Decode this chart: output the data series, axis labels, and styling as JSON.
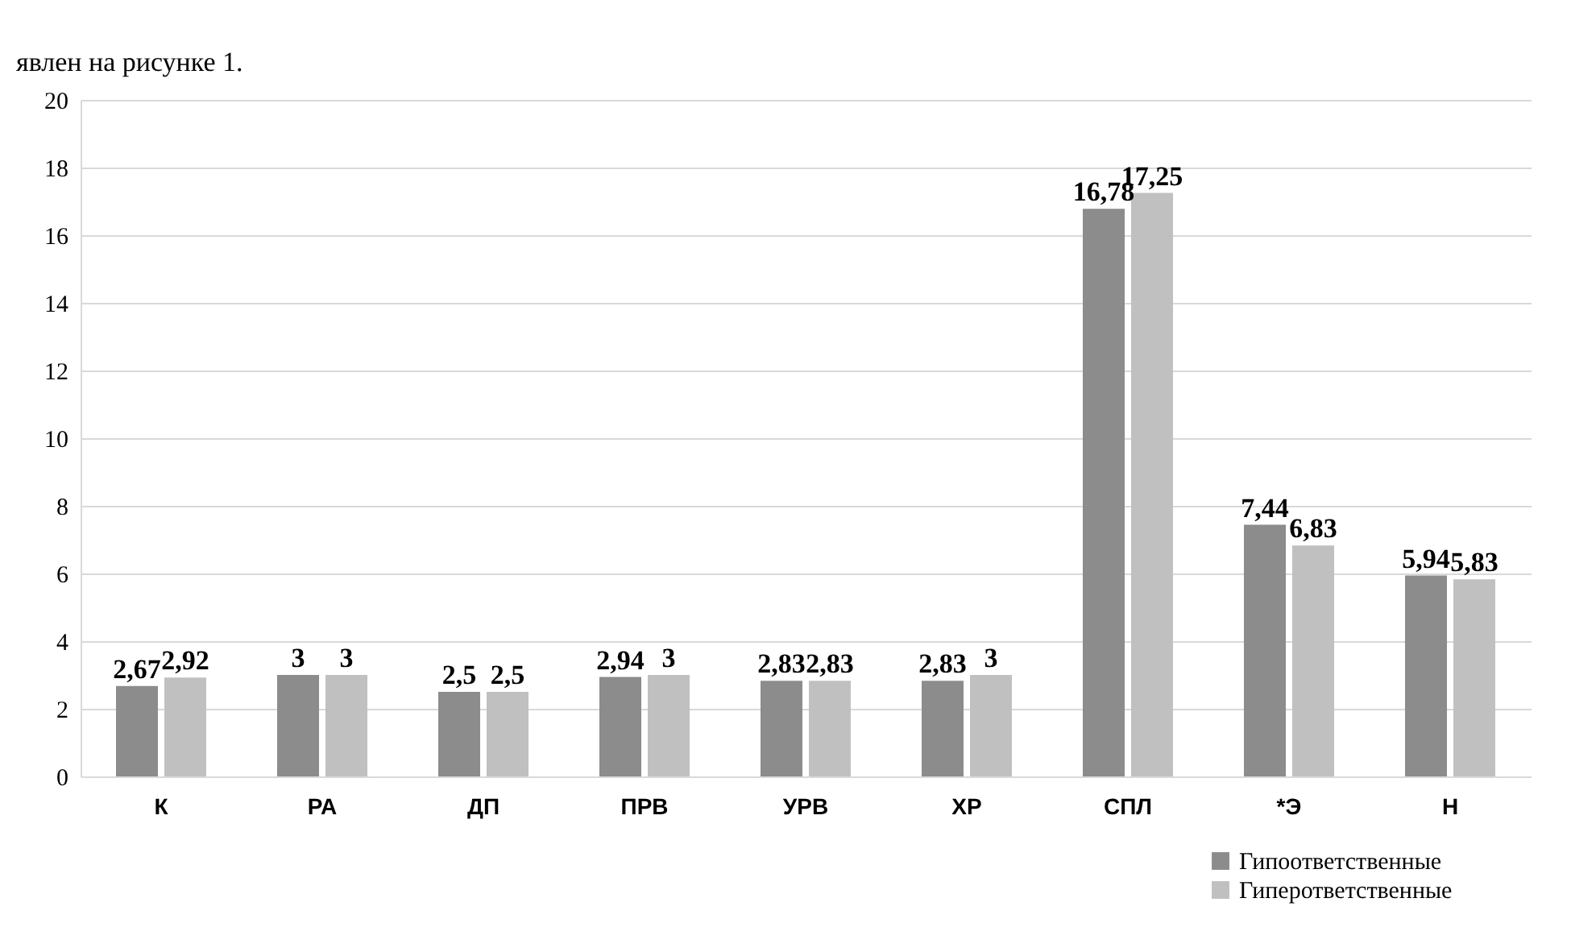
{
  "chart_data": {
    "type": "bar",
    "annotations": [
      "явлен на рисунке 1."
    ],
    "categories": [
      "К",
      "РА",
      "ДП",
      "ПРВ",
      "УРВ",
      "ХР",
      "СПЛ",
      "*Э",
      "Н"
    ],
    "series": [
      {
        "name": "Гипоответственные",
        "color": "#8c8c8c",
        "values": [
          2.67,
          3,
          2.5,
          2.94,
          2.83,
          2.83,
          16.78,
          7.44,
          5.94
        ],
        "value_labels": [
          "2,67",
          "3",
          "2,5",
          "2,94",
          "2,83",
          "2,83",
          "16,78",
          "7,44",
          "5,94"
        ]
      },
      {
        "name": "Гиперответственные",
        "color": "#c0c0c0",
        "values": [
          2.92,
          3,
          2.5,
          3,
          2.83,
          3,
          17.25,
          6.83,
          5.83
        ],
        "value_labels": [
          "2,92",
          "3",
          "2,5",
          "3",
          "2,83",
          "3",
          "17,25",
          "6,83",
          "5,83"
        ]
      }
    ],
    "ylim": [
      0,
      20
    ],
    "yticks": [
      0,
      2,
      4,
      6,
      8,
      10,
      12,
      14,
      16,
      18,
      20
    ],
    "grid": "y",
    "legend": "bottom right"
  }
}
